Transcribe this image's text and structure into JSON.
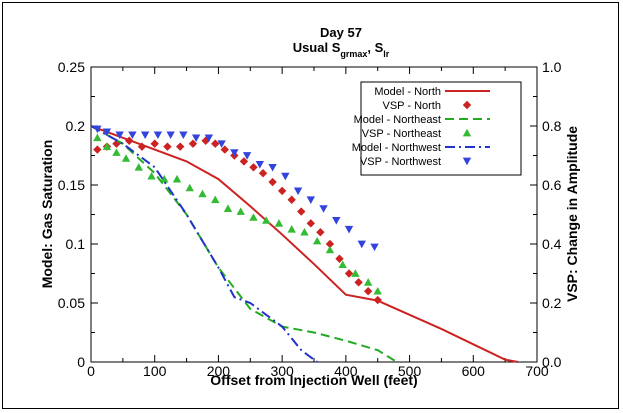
{
  "chart_data": {
    "type": "line",
    "title": "Day 57",
    "subtitle_parts": {
      "lead": "Usual S",
      "sub1": "grmax",
      "mid": ", S",
      "sub2": "lr"
    },
    "xlabel": "Offset from Injection Well (feet)",
    "ylabel_left": "Model: Gas Saturation",
    "ylabel_right": "VSP: Change in Amplitude",
    "xlim": [
      0,
      700
    ],
    "ylim_left": [
      0,
      0.25
    ],
    "ylim_right": [
      0,
      1.0
    ],
    "x_ticks": [
      "0",
      "100",
      "200",
      "300",
      "400",
      "500",
      "600",
      "700"
    ],
    "y_ticks_left": [
      "0",
      "0.05",
      "0.1",
      "0.15",
      "0.2",
      "0.25"
    ],
    "y_ticks_right": [
      "0.0",
      "0.2",
      "0.4",
      "0.6",
      "0.8",
      "1.0"
    ],
    "grid": false,
    "legend_position": "top-right",
    "series": [
      {
        "name": "Model - North",
        "kind": "line",
        "axis": "left",
        "color": "#cc2222",
        "dash": "solid",
        "x": [
          0,
          50,
          100,
          150,
          200,
          250,
          300,
          350,
          400,
          450,
          500,
          550,
          600,
          650,
          670
        ],
        "y": [
          0.2,
          0.19,
          0.18,
          0.17,
          0.155,
          0.132,
          0.108,
          0.083,
          0.057,
          0.052,
          0.04,
          0.028,
          0.015,
          0.002,
          0
        ]
      },
      {
        "name": "VSP - North",
        "kind": "marker",
        "marker": "diamond",
        "axis": "right",
        "color": "#cc2222",
        "x": [
          10,
          25,
          40,
          60,
          80,
          100,
          120,
          140,
          160,
          180,
          195,
          210,
          225,
          240,
          255,
          270,
          285,
          300,
          315,
          330,
          345,
          360,
          375,
          390,
          405,
          420,
          435,
          450
        ],
        "y": [
          0.72,
          0.73,
          0.74,
          0.75,
          0.73,
          0.74,
          0.73,
          0.73,
          0.74,
          0.75,
          0.74,
          0.72,
          0.7,
          0.68,
          0.66,
          0.64,
          0.61,
          0.58,
          0.55,
          0.51,
          0.47,
          0.44,
          0.4,
          0.35,
          0.3,
          0.27,
          0.24,
          0.21
        ]
      },
      {
        "name": "Model - Northeast",
        "kind": "line",
        "axis": "left",
        "color": "#22aa22",
        "dash": "dashed",
        "x": [
          0,
          50,
          100,
          150,
          200,
          250,
          300,
          350,
          400,
          450,
          480
        ],
        "y": [
          0.2,
          0.185,
          0.16,
          0.125,
          0.08,
          0.045,
          0.03,
          0.025,
          0.018,
          0.01,
          0
        ]
      },
      {
        "name": "VSP - Northeast",
        "kind": "marker",
        "marker": "triangle-up",
        "axis": "right",
        "color": "#33bb33",
        "x": [
          10,
          25,
          40,
          55,
          75,
          95,
          115,
          135,
          155,
          175,
          195,
          215,
          235,
          255,
          275,
          295,
          315,
          335,
          355,
          375,
          395,
          415,
          435,
          450
        ],
        "y": [
          0.76,
          0.73,
          0.71,
          0.69,
          0.66,
          0.63,
          0.62,
          0.62,
          0.59,
          0.57,
          0.55,
          0.52,
          0.51,
          0.49,
          0.48,
          0.47,
          0.45,
          0.44,
          0.41,
          0.38,
          0.33,
          0.3,
          0.27,
          0.24
        ]
      },
      {
        "name": "Model - Northwest",
        "kind": "line",
        "axis": "left",
        "color": "#2233cc",
        "dash": "dashdot",
        "x": [
          0,
          50,
          100,
          150,
          200,
          225,
          250,
          300,
          330,
          350,
          355
        ],
        "y": [
          0.2,
          0.185,
          0.165,
          0.125,
          0.08,
          0.055,
          0.05,
          0.03,
          0.01,
          0.002,
          0
        ]
      },
      {
        "name": "VSP - Northwest",
        "kind": "marker",
        "marker": "triangle-down",
        "axis": "right",
        "color": "#3344dd",
        "x": [
          10,
          25,
          45,
          65,
          85,
          105,
          125,
          145,
          165,
          185,
          205,
          225,
          245,
          265,
          285,
          305,
          325,
          345,
          365,
          385,
          405,
          425,
          445
        ],
        "y": [
          0.79,
          0.78,
          0.77,
          0.77,
          0.77,
          0.77,
          0.77,
          0.77,
          0.76,
          0.76,
          0.74,
          0.71,
          0.7,
          0.67,
          0.66,
          0.63,
          0.58,
          0.55,
          0.52,
          0.48,
          0.45,
          0.4,
          0.39
        ]
      }
    ]
  }
}
